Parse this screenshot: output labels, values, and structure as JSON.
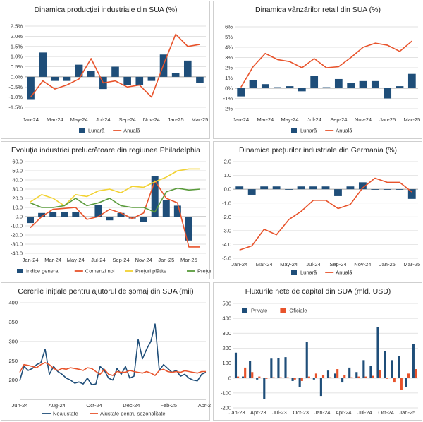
{
  "colors": {
    "dark_blue": "#1f4e79",
    "orange": "#e8532b",
    "yellow": "#f2d233",
    "green": "#5a9b3c",
    "grid": "#d9d9d9",
    "axis": "#8c8c8c"
  },
  "chart_data": [
    {
      "id": "p1",
      "type": "bar+line",
      "title": "Dinamica producției industriale din SUA (%)",
      "categories": [
        "Jan-24",
        "Feb-24",
        "Mar-24",
        "Apr-24",
        "May-24",
        "Jun-24",
        "Jul-24",
        "Aug-24",
        "Sep-24",
        "Oct-24",
        "Nov-24",
        "Dec-24",
        "Jan-25",
        "Feb-25",
        "Mar-25"
      ],
      "x_tick_labels": [
        "Jan-24",
        "Mar-24",
        "May-24",
        "Jul-24",
        "Sep-24",
        "Nov-24",
        "Jan-25",
        "Mar-25"
      ],
      "y_ticks": [
        2.5,
        2.0,
        1.5,
        1.0,
        0.5,
        0.0,
        -0.5,
        -1.0,
        -1.5
      ],
      "y_tick_labels": [
        "2.5%",
        "2.0%",
        "1.5%",
        "1.0%",
        "0.5%",
        "0.0%",
        "-0.5%",
        "-1.0%",
        "-1.5%"
      ],
      "ylim": [
        -1.5,
        2.5
      ],
      "series": [
        {
          "name": "Lunară",
          "kind": "bar",
          "color": "#1f4e79",
          "values": [
            -1.1,
            1.2,
            -0.2,
            -0.2,
            0.6,
            0.3,
            -0.6,
            0.5,
            -0.4,
            -0.4,
            -0.2,
            1.1,
            0.2,
            0.8,
            -0.3
          ]
        },
        {
          "name": "Anuală",
          "kind": "line",
          "color": "#e8532b",
          "values": [
            -1.0,
            -0.2,
            -0.6,
            -0.4,
            -0.1,
            0.9,
            -0.3,
            -0.2,
            -0.5,
            -0.4,
            -1.0,
            0.6,
            2.1,
            1.5,
            1.6
          ]
        }
      ]
    },
    {
      "id": "p2",
      "type": "bar+line",
      "title": "Dinamica vânzărilor retail din SUA (%)",
      "categories": [
        "Jan-24",
        "Feb-24",
        "Mar-24",
        "Apr-24",
        "May-24",
        "Jun-24",
        "Jul-24",
        "Aug-24",
        "Sep-24",
        "Oct-24",
        "Nov-24",
        "Dec-24",
        "Jan-25",
        "Feb-25",
        "Mar-25"
      ],
      "x_tick_labels": [
        "Jan-24",
        "Mar-24",
        "May-24",
        "Jul-24",
        "Sep-24",
        "Nov-24",
        "Jan-25",
        "Mar-25"
      ],
      "y_ticks": [
        6,
        5,
        4,
        3,
        2,
        1,
        0,
        -1,
        -2
      ],
      "y_tick_labels": [
        "6%",
        "5%",
        "4%",
        "3%",
        "2%",
        "1%",
        "0%",
        "-1%",
        "-2%"
      ],
      "ylim": [
        -2,
        6
      ],
      "series": [
        {
          "name": "Lunară",
          "kind": "bar",
          "color": "#1f4e79",
          "values": [
            -0.8,
            0.8,
            0.4,
            0.1,
            0.2,
            -0.3,
            1.2,
            0.1,
            0.9,
            0.5,
            0.7,
            0.7,
            -1.0,
            0.2,
            1.4
          ]
        },
        {
          "name": "Anuală",
          "kind": "line",
          "color": "#e8532b",
          "values": [
            0.1,
            2.1,
            3.4,
            2.8,
            2.6,
            2.0,
            2.9,
            2.0,
            2.1,
            3.0,
            4.0,
            4.4,
            4.2,
            3.6,
            4.6
          ]
        }
      ]
    },
    {
      "id": "p3",
      "type": "bar+line",
      "title": "Evoluția industriei prelucrătoare din regiunea Philadelphia",
      "categories": [
        "Jan-24",
        "Feb-24",
        "Mar-24",
        "Apr-24",
        "May-24",
        "Jun-24",
        "Jul-24",
        "Aug-24",
        "Sep-24",
        "Oct-24",
        "Nov-24",
        "Dec-24",
        "Jan-25",
        "Feb-25",
        "Mar-25",
        "Apr-25"
      ],
      "x_tick_labels": [
        "Jan-24",
        "Mar-24",
        "May-24",
        "Jul-24",
        "Sep-24",
        "Nov-24",
        "Jan-25",
        "Mar-25"
      ],
      "y_ticks": [
        60,
        50,
        40,
        30,
        20,
        10,
        0,
        -10,
        -20,
        -30,
        -40
      ],
      "y_tick_labels": [
        "60.0",
        "50.0",
        "40.0",
        "30.0",
        "20.0",
        "10.0",
        "0.0",
        "-10.0",
        "-20.0",
        "-30.0",
        "-40.0"
      ],
      "ylim": [
        -40,
        60
      ],
      "series": [
        {
          "name": "Indice general",
          "kind": "bar",
          "color": "#1f4e79",
          "values": [
            -7,
            4,
            5,
            5,
            5,
            0,
            13,
            -4,
            4,
            -2,
            -6,
            44,
            18,
            12,
            -26,
            0
          ]
        },
        {
          "name": "Comenzi noi",
          "kind": "line",
          "color": "#e8532b",
          "values": [
            -12,
            0,
            8,
            9,
            10,
            -3,
            0,
            8,
            4,
            -2,
            4,
            39,
            20,
            15,
            -33,
            -33
          ]
        },
        {
          "name": "Prețuri plătite",
          "kind": "line",
          "color": "#f2d233",
          "values": [
            16,
            24,
            20,
            12,
            24,
            22,
            28,
            30,
            26,
            33,
            32,
            38,
            43,
            50,
            52,
            52
          ]
        },
        {
          "name": "Prețuri încasate",
          "kind": "line",
          "color": "#5a9b3c",
          "values": [
            15,
            10,
            10,
            12,
            20,
            12,
            15,
            20,
            12,
            10,
            10,
            5,
            27,
            31,
            29,
            30
          ]
        }
      ]
    },
    {
      "id": "p4",
      "type": "bar+line",
      "title": "Dinamica prețurilor industriale din Germania (%)",
      "categories": [
        "Jan-24",
        "Feb-24",
        "Mar-24",
        "Apr-24",
        "May-24",
        "Jun-24",
        "Jul-24",
        "Aug-24",
        "Sep-24",
        "Oct-24",
        "Nov-24",
        "Dec-24",
        "Jan-25",
        "Feb-25",
        "Mar-25"
      ],
      "x_tick_labels": [
        "Jan-24",
        "Mar-24",
        "May-24",
        "Jul-24",
        "Sep-24",
        "Nov-24",
        "Jan-25",
        "Mar-25"
      ],
      "y_ticks": [
        2,
        1,
        0,
        -1,
        -2,
        -3,
        -4,
        -5
      ],
      "y_tick_labels": [
        "2.0",
        "1.0",
        "0.0",
        "-1.0",
        "-2.0",
        "-3.0",
        "-4.0",
        "-5.0"
      ],
      "ylim": [
        -5,
        2
      ],
      "series": [
        {
          "name": "Lunară",
          "kind": "bar",
          "color": "#1f4e79",
          "values": [
            0.2,
            -0.4,
            0.2,
            0.2,
            0.0,
            0.2,
            0.2,
            0.2,
            -0.5,
            0.2,
            0.5,
            0.0,
            0.0,
            0.0,
            -0.7
          ]
        },
        {
          "name": "Anuală",
          "kind": "line",
          "color": "#e8532b",
          "values": [
            -4.4,
            -4.1,
            -2.9,
            -3.3,
            -2.2,
            -1.6,
            -0.8,
            -0.8,
            -1.4,
            -1.1,
            0.1,
            0.8,
            0.5,
            0.5,
            -0.2
          ]
        }
      ]
    },
    {
      "id": "p5",
      "type": "line",
      "title": "Cererile inițiale pentru ajutorul de șomaj din SUA (mii)",
      "x_tick_labels": [
        "Jun-24",
        "Aug-24",
        "Oct-24",
        "Dec-24",
        "Feb-25",
        "Apr-25"
      ],
      "y_ticks": [
        400,
        350,
        300,
        250,
        200
      ],
      "y_tick_labels": [
        "400",
        "350",
        "300",
        "250",
        "200"
      ],
      "ylim": [
        150,
        400
      ],
      "series": [
        {
          "name": "Neajustate",
          "kind": "line",
          "color": "#1f4e79",
          "values": [
            198,
            236,
            225,
            230,
            240,
            245,
            280,
            215,
            235,
            222,
            215,
            205,
            200,
            192,
            195,
            190,
            205,
            188,
            190,
            235,
            225,
            205,
            200,
            230,
            215,
            235,
            205,
            210,
            305,
            255,
            280,
            300,
            345,
            225,
            240,
            230,
            220,
            225,
            210,
            215,
            205,
            200,
            198,
            215,
            220
          ]
        },
        {
          "name": "Ajustate pentru sezonalitate",
          "kind": "line",
          "color": "#e8532b",
          "values": [
            220,
            240,
            238,
            235,
            232,
            240,
            245,
            240,
            230,
            225,
            230,
            228,
            232,
            230,
            228,
            225,
            232,
            230,
            222,
            215,
            228,
            215,
            212,
            222,
            220,
            220,
            225,
            222,
            220,
            218,
            222,
            218,
            212,
            225,
            228,
            222,
            220,
            222,
            220,
            224,
            222,
            220,
            218,
            222,
            222
          ]
        }
      ]
    },
    {
      "id": "p6",
      "type": "bar",
      "title": "Fluxurile nete de capital din SUA (mld. USD)",
      "categories": [
        "Jan-23",
        "Feb-23",
        "Mar-23",
        "Apr-23",
        "May-23",
        "Jun-23",
        "Jul-23",
        "Aug-23",
        "Sep-23",
        "Oct-23",
        "Nov-23",
        "Dec-23",
        "Jan-24",
        "Feb-24",
        "Mar-24",
        "Apr-24",
        "May-24",
        "Jun-24",
        "Jul-24",
        "Aug-24",
        "Sep-24",
        "Oct-24",
        "Nov-24",
        "Dec-24",
        "Jan-25",
        "Feb-25"
      ],
      "x_tick_labels": [
        "Jan-23",
        "Apr-23",
        "Jul-23",
        "Oct-23",
        "Jan-24",
        "Apr-24",
        "Jul-24",
        "Oct-24",
        "Jan-25"
      ],
      "y_ticks": [
        500,
        400,
        300,
        200,
        100,
        0,
        -100,
        -200
      ],
      "y_tick_labels": [
        "500",
        "400",
        "300",
        "200",
        "100",
        "0",
        "-100",
        "-200"
      ],
      "ylim": [
        -200,
        500
      ],
      "series": [
        {
          "name": "Private",
          "kind": "bar",
          "color": "#1f4e79",
          "values": [
            170,
            10,
            115,
            -10,
            -140,
            130,
            135,
            140,
            -20,
            -60,
            240,
            -10,
            -120,
            50,
            30,
            -30,
            70,
            40,
            120,
            80,
            340,
            180,
            120,
            150,
            -60,
            230
          ]
        },
        {
          "name": "Oficiale",
          "kind": "bar",
          "color": "#e8532b",
          "values": [
            10,
            70,
            40,
            10,
            -5,
            5,
            5,
            5,
            -10,
            -20,
            10,
            30,
            20,
            5,
            60,
            20,
            5,
            10,
            10,
            15,
            55,
            -5,
            -30,
            -80,
            30,
            60
          ]
        }
      ]
    }
  ]
}
